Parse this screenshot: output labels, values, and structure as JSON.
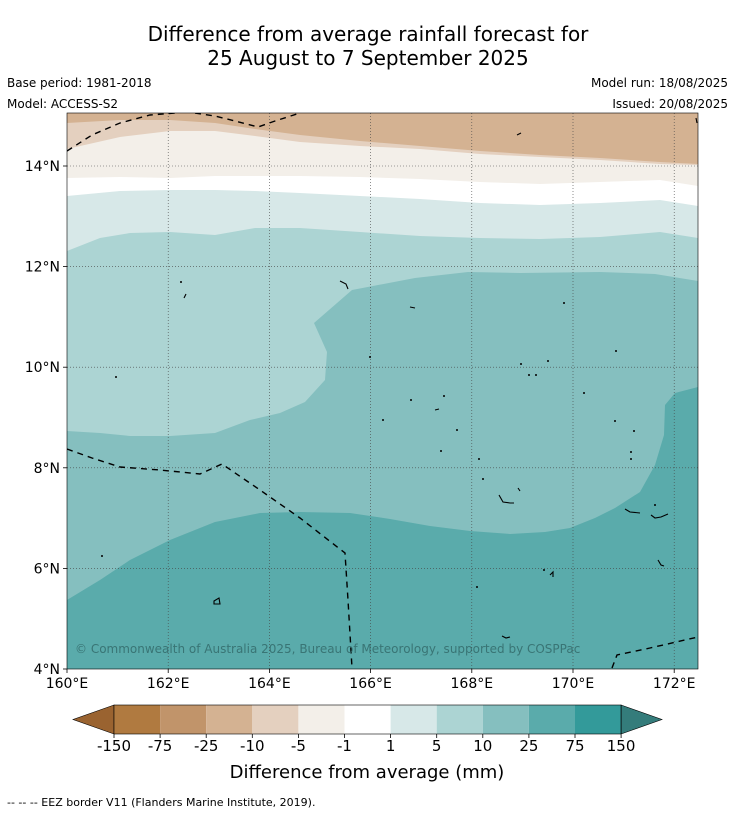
{
  "title_line1": "Difference from average rainfall forecast for",
  "title_line2": "25 August to 7 September 2025",
  "base_period": "Base period: 1981-2018",
  "model": "Model: ACCESS-S2",
  "model_run": "Model run: 18/08/2025",
  "issued": "Issued: 20/08/2025",
  "copyright": "© Commonwealth of Australia 2025, Bureau of Meteorology, supported by COSPPac",
  "map": {
    "lon_ticks": [
      "160°E",
      "162°E",
      "164°E",
      "166°E",
      "168°E",
      "170°E",
      "172°E"
    ],
    "lat_ticks": [
      "4°N",
      "6°N",
      "8°N",
      "10°N",
      "12°N",
      "14°N"
    ]
  },
  "colorbar": {
    "title": "Difference from average (mm)",
    "labels": [
      "-150",
      "-75",
      "-25",
      "-10",
      "-5",
      "-1",
      "1",
      "5",
      "10",
      "25",
      "75",
      "150"
    ],
    "colors": [
      "#9a6330",
      "#b07a40",
      "#c1946a",
      "#d4b292",
      "#e4d0bf",
      "#f3efe9",
      "#ffffff",
      "#d7e8e8",
      "#acd4d3",
      "#85bfbf",
      "#5aabab",
      "#339a9a",
      "#347c7b"
    ]
  },
  "legend_footnote": "--  --  -- EEZ border V11 (Flanders Marine Institute, 2019)."
}
